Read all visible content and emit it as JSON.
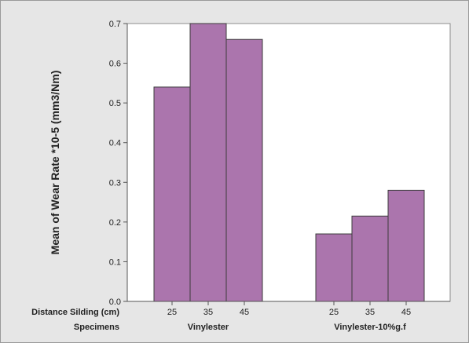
{
  "chart_data": {
    "type": "bar",
    "title": "",
    "ylabel": "Mean of Wear Rate *10-5 (mm3/Nm)",
    "ylim": [
      0,
      0.7
    ],
    "yticks": [
      "0.0",
      "0.1",
      "0.2",
      "0.3",
      "0.4",
      "0.5",
      "0.6",
      "0.7"
    ],
    "row_labels": {
      "distance": "Distance Silding (cm)",
      "specimens": "Specimens"
    },
    "groups": [
      {
        "name": "Vinylester",
        "categories": [
          "25",
          "35",
          "45"
        ],
        "values": [
          0.54,
          0.7,
          0.66
        ]
      },
      {
        "name": "Vinylester-10%g.f",
        "categories": [
          "25",
          "35",
          "45"
        ],
        "values": [
          0.17,
          0.215,
          0.28
        ]
      }
    ],
    "bar_color": "#ab75ad",
    "bar_edge_color": "#3c3c3c",
    "plot_background": "#ffffff",
    "frame_background": "#e6e6e6"
  }
}
